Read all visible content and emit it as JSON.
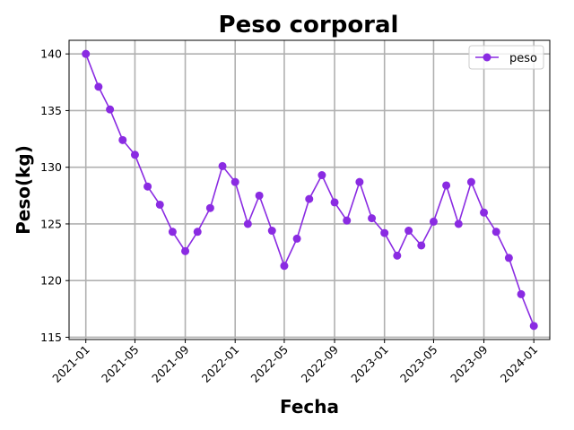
{
  "chart_data": {
    "type": "line",
    "title": "Peso corporal",
    "xlabel": "Fecha",
    "ylabel": "Peso(kg)",
    "ylim": [
      114.8,
      141.2
    ],
    "xlim": [
      "2020-11-21",
      "2024-02-09"
    ],
    "grid": true,
    "legend_position": "top-right",
    "x_ticks": [
      "2021-01",
      "2021-05",
      "2021-09",
      "2022-01",
      "2022-05",
      "2022-09",
      "2023-01",
      "2023-05",
      "2023-09",
      "2024-01"
    ],
    "y_ticks": [
      115,
      120,
      125,
      130,
      135,
      140
    ],
    "series": [
      {
        "name": "peso",
        "color": "#8a2be2",
        "marker": "circle",
        "x": [
          "2021-01-01",
          "2021-02-01",
          "2021-03-01",
          "2021-04-01",
          "2021-05-01",
          "2021-06-01",
          "2021-07-01",
          "2021-08-01",
          "2021-09-01",
          "2021-10-01",
          "2021-11-01",
          "2021-12-01",
          "2022-01-01",
          "2022-02-01",
          "2022-03-01",
          "2022-04-01",
          "2022-05-01",
          "2022-06-01",
          "2022-07-01",
          "2022-08-01",
          "2022-09-01",
          "2022-10-01",
          "2022-11-01",
          "2022-12-01",
          "2023-01-01",
          "2023-02-01",
          "2023-03-01",
          "2023-04-01",
          "2023-05-01",
          "2023-06-01",
          "2023-07-01",
          "2023-08-01",
          "2023-09-01",
          "2023-10-01",
          "2023-11-01",
          "2023-12-01",
          "2024-01-01"
        ],
        "values": [
          140.0,
          137.1,
          135.1,
          132.4,
          131.1,
          128.3,
          126.7,
          124.3,
          122.6,
          124.3,
          126.4,
          130.1,
          128.7,
          125.0,
          127.5,
          124.4,
          121.3,
          123.7,
          127.2,
          129.3,
          126.9,
          125.3,
          128.7,
          125.5,
          124.2,
          122.2,
          124.4,
          123.1,
          125.2,
          128.4,
          125.0,
          128.7,
          126.0,
          124.3,
          122.0,
          118.8,
          116.0
        ]
      }
    ]
  }
}
